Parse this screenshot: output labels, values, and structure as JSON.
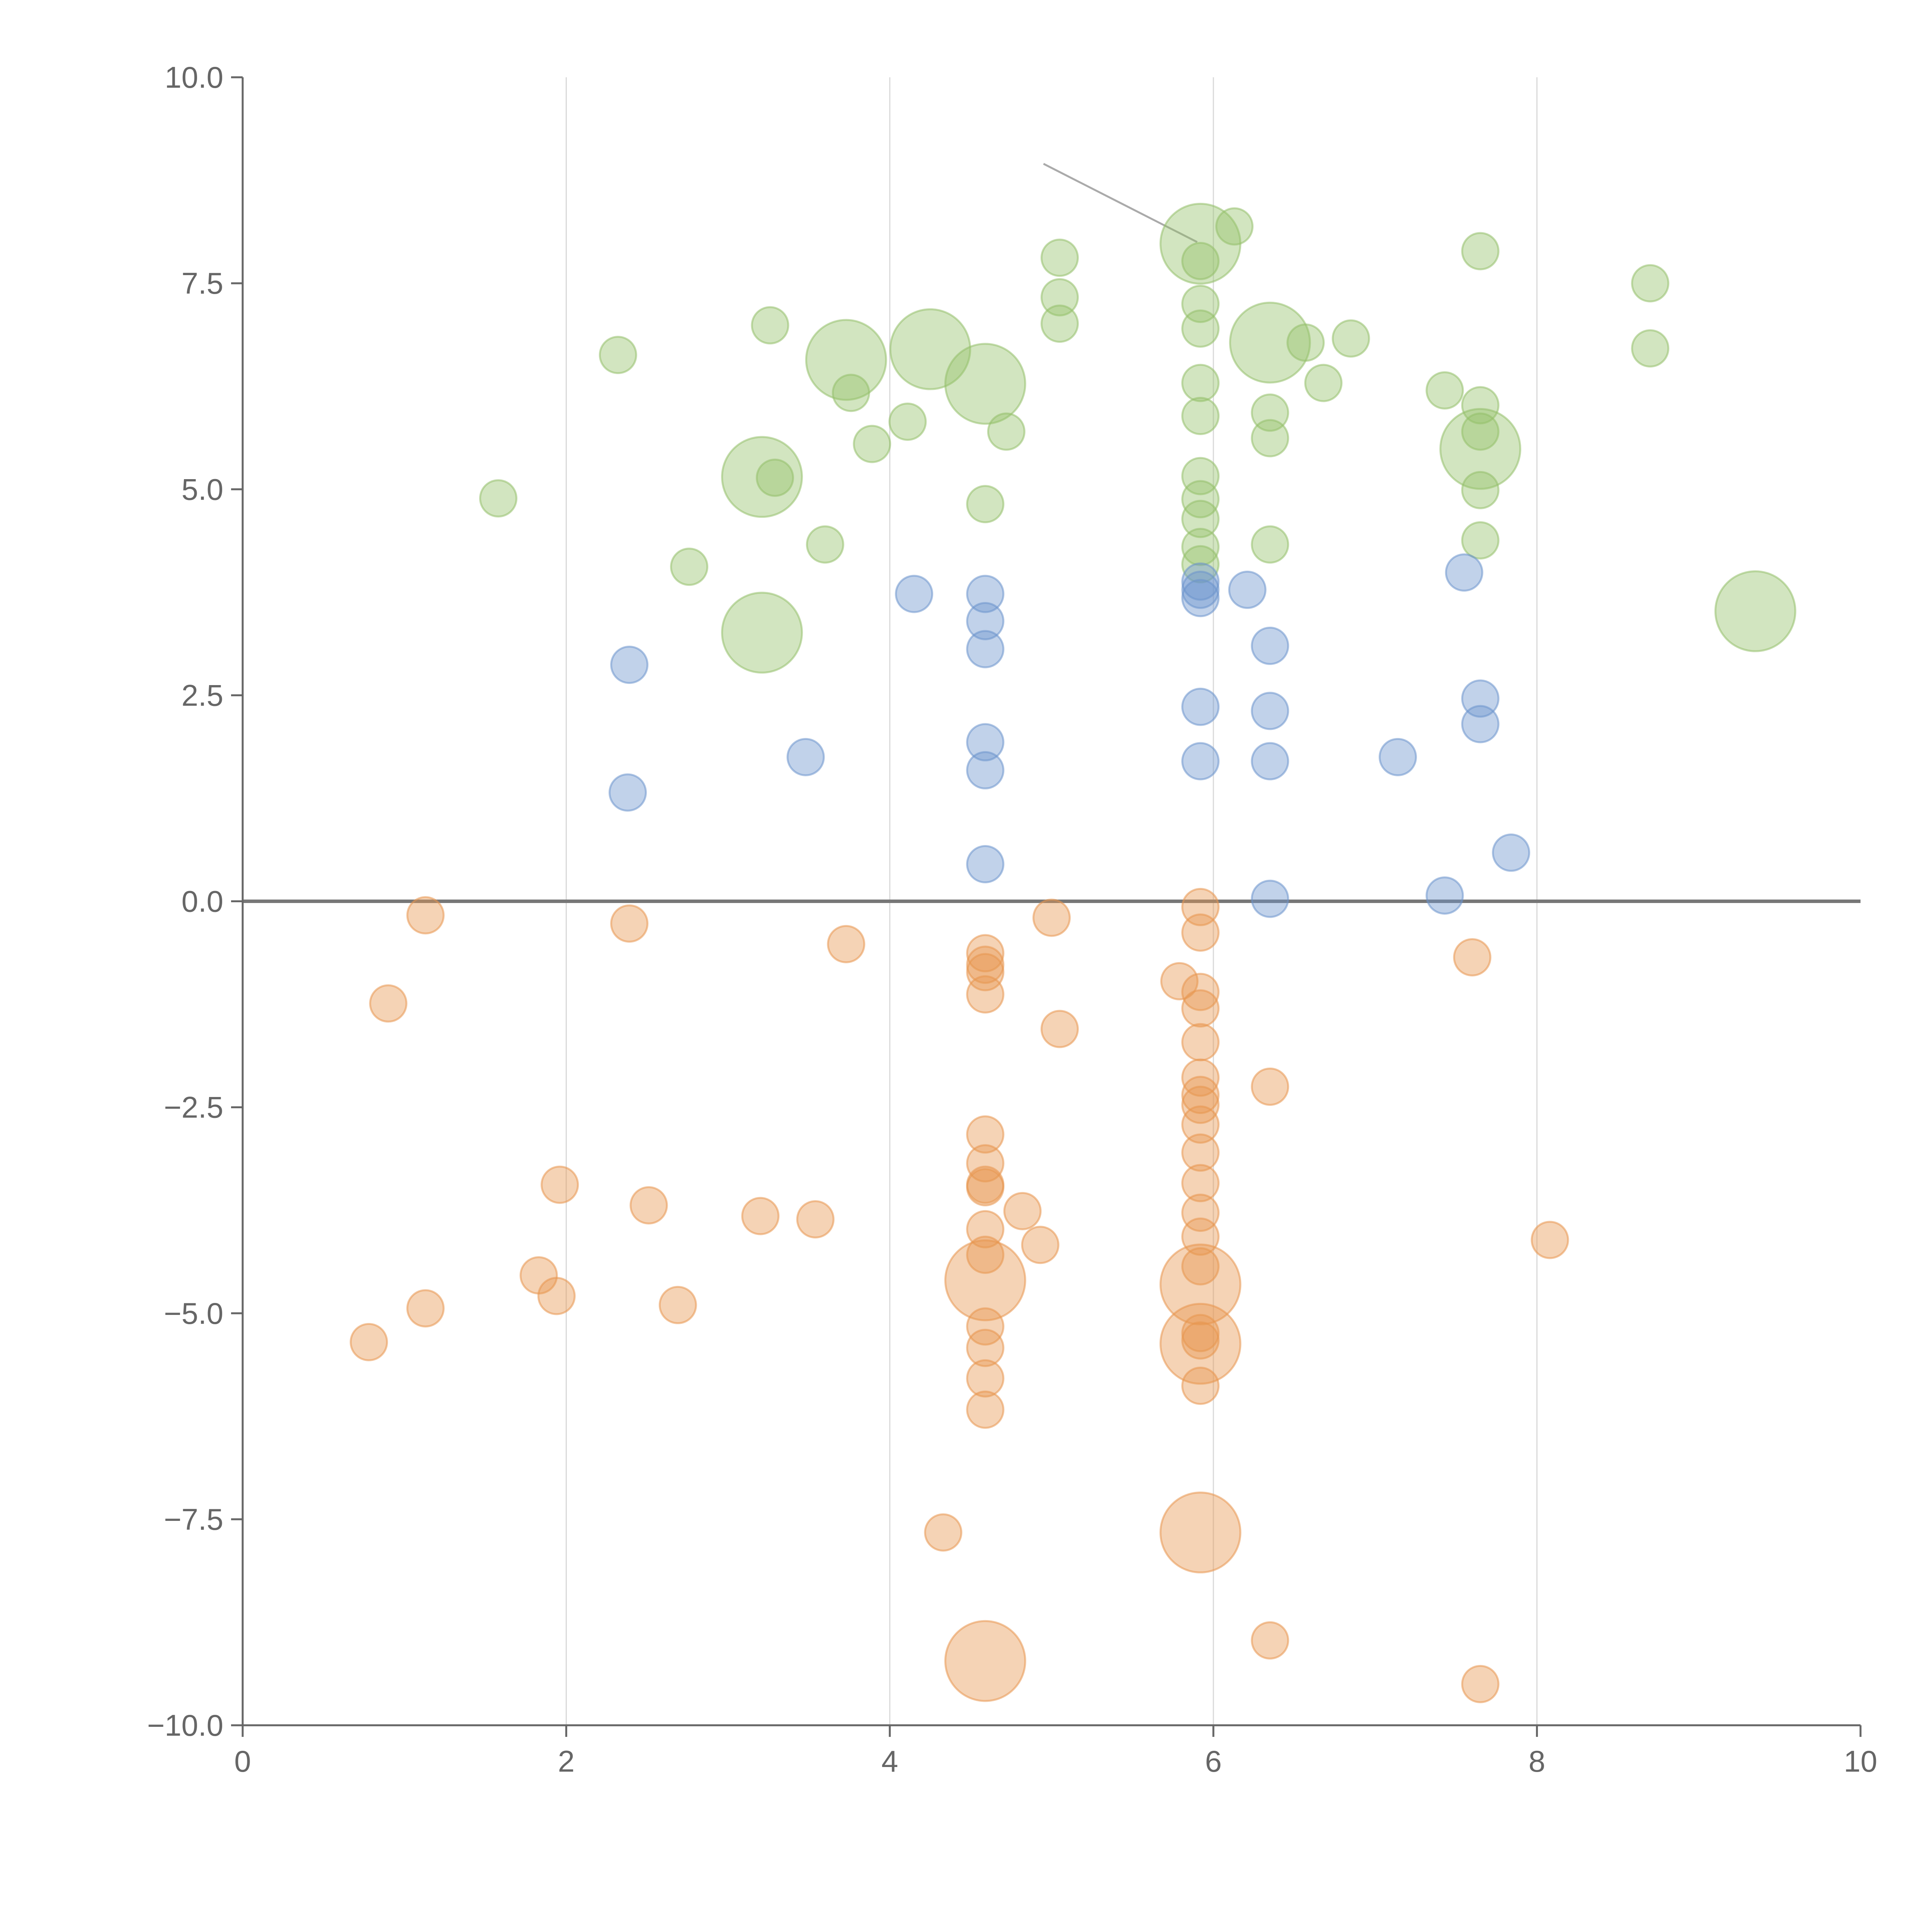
{
  "chart_data": {
    "type": "scatter",
    "title": "",
    "xlabel": "",
    "ylabel": "",
    "xlim": [
      0,
      10
    ],
    "ylim": [
      -10,
      10
    ],
    "x_ticks": [
      0,
      2,
      4,
      6,
      8,
      10
    ],
    "x_tick_labels": [
      "0",
      "2",
      "4",
      "6",
      "8",
      "10"
    ],
    "y_ticks": [
      10,
      7.5,
      5,
      2.5,
      0,
      -2.5,
      -5,
      -7.5,
      -10
    ],
    "y_tick_labels": [
      "10.0",
      "7.5",
      "5.0",
      "2.5",
      "0.0",
      "−2.5",
      "−5.0",
      "−7.5",
      "−10.0"
    ],
    "grid": "vertical",
    "colors": {
      "green": "#93c06a",
      "blue": "#6b93cc",
      "orange": "#e8954e"
    },
    "annotation_line": {
      "from": [
        4.95,
        8.95
      ],
      "to": [
        5.9,
        8.0
      ]
    },
    "series": [
      {
        "name": "green",
        "color": "#93c06a",
        "points": [
          [
            1.58,
            4.89,
            1
          ],
          [
            2.32,
            6.63,
            1
          ],
          [
            2.76,
            4.06,
            1
          ],
          [
            3.21,
            5.15,
            2.2
          ],
          [
            3.26,
            6.99,
            1
          ],
          [
            3.29,
            5.14,
            1
          ],
          [
            3.21,
            3.26,
            2.2
          ],
          [
            3.6,
            4.33,
            1
          ],
          [
            3.73,
            6.57,
            2.2
          ],
          [
            3.76,
            6.17,
            1
          ],
          [
            3.89,
            5.55,
            1
          ],
          [
            4.11,
            5.82,
            1
          ],
          [
            4.25,
            6.7,
            2.2
          ],
          [
            4.59,
            6.28,
            2.2
          ],
          [
            4.59,
            4.82,
            1
          ],
          [
            4.72,
            5.7,
            1
          ],
          [
            5.05,
            7.81,
            1
          ],
          [
            5.05,
            7.33,
            1
          ],
          [
            5.05,
            7.01,
            1
          ],
          [
            5.92,
            7.98,
            2.2
          ],
          [
            5.92,
            7.77,
            1
          ],
          [
            5.92,
            7.25,
            1
          ],
          [
            5.92,
            6.95,
            1
          ],
          [
            5.92,
            6.29,
            1
          ],
          [
            5.92,
            5.89,
            1
          ],
          [
            5.92,
            5.16,
            1
          ],
          [
            5.92,
            4.88,
            1
          ],
          [
            5.92,
            4.64,
            1
          ],
          [
            5.92,
            4.3,
            1
          ],
          [
            5.92,
            4.09,
            1
          ],
          [
            6.13,
            8.19,
            1
          ],
          [
            6.35,
            6.78,
            2.2
          ],
          [
            6.35,
            5.93,
            1
          ],
          [
            6.35,
            5.62,
            1
          ],
          [
            6.35,
            4.33,
            1
          ],
          [
            6.57,
            6.78,
            1
          ],
          [
            6.68,
            6.29,
            1
          ],
          [
            6.85,
            6.83,
            1
          ],
          [
            7.43,
            6.2,
            1
          ],
          [
            7.65,
            7.89,
            1
          ],
          [
            7.65,
            6.02,
            1
          ],
          [
            7.65,
            5.7,
            1
          ],
          [
            7.65,
            5.49,
            2.2
          ],
          [
            7.65,
            4.99,
            1
          ],
          [
            7.65,
            4.38,
            1
          ],
          [
            8.7,
            7.5,
            1
          ],
          [
            8.7,
            6.71,
            1
          ],
          [
            9.35,
            3.52,
            2.2
          ]
        ]
      },
      {
        "name": "blue",
        "color": "#6b93cc",
        "points": [
          [
            2.39,
            2.87,
            1
          ],
          [
            2.38,
            1.32,
            1
          ],
          [
            3.48,
            1.75,
            1
          ],
          [
            4.15,
            3.73,
            1
          ],
          [
            4.59,
            3.73,
            1
          ],
          [
            4.59,
            3.4,
            1
          ],
          [
            4.59,
            3.06,
            1
          ],
          [
            4.59,
            1.93,
            1
          ],
          [
            4.59,
            1.59,
            1
          ],
          [
            4.59,
            0.45,
            1
          ],
          [
            5.92,
            3.88,
            1
          ],
          [
            5.92,
            3.78,
            1
          ],
          [
            5.92,
            3.68,
            1
          ],
          [
            5.92,
            2.36,
            1
          ],
          [
            5.92,
            1.7,
            1
          ],
          [
            6.21,
            3.78,
            1
          ],
          [
            6.35,
            3.1,
            1
          ],
          [
            6.35,
            2.31,
            1
          ],
          [
            6.35,
            1.7,
            1
          ],
          [
            6.35,
            0.03,
            1
          ],
          [
            7.14,
            1.75,
            1
          ],
          [
            7.43,
            0.07,
            1
          ],
          [
            7.55,
            3.99,
            1
          ],
          [
            7.65,
            2.46,
            1
          ],
          [
            7.65,
            2.15,
            1
          ],
          [
            7.84,
            0.59,
            1
          ]
        ]
      },
      {
        "name": "orange",
        "color": "#e8954e",
        "points": [
          [
            0.78,
            -5.35,
            1
          ],
          [
            0.9,
            -1.24,
            1
          ],
          [
            1.13,
            -0.17,
            1
          ],
          [
            1.13,
            -4.94,
            1
          ],
          [
            1.83,
            -4.54,
            1
          ],
          [
            1.94,
            -4.79,
            1
          ],
          [
            1.96,
            -3.44,
            1
          ],
          [
            2.39,
            -0.27,
            1
          ],
          [
            2.51,
            -3.69,
            1
          ],
          [
            2.69,
            -4.9,
            1
          ],
          [
            3.2,
            -3.82,
            1
          ],
          [
            3.54,
            -3.86,
            1
          ],
          [
            3.73,
            -0.52,
            1
          ],
          [
            4.33,
            -7.66,
            1
          ],
          [
            4.59,
            -0.63,
            1
          ],
          [
            4.59,
            -0.77,
            1
          ],
          [
            4.59,
            -0.86,
            1
          ],
          [
            4.59,
            -1.13,
            1
          ],
          [
            4.59,
            -2.83,
            1
          ],
          [
            4.59,
            -3.18,
            1
          ],
          [
            4.59,
            -3.44,
            1
          ],
          [
            4.59,
            -3.47,
            1
          ],
          [
            4.59,
            -3.98,
            1
          ],
          [
            4.59,
            -4.29,
            1
          ],
          [
            4.59,
            -4.6,
            2.2
          ],
          [
            4.59,
            -5.16,
            1
          ],
          [
            4.59,
            -5.42,
            1
          ],
          [
            4.59,
            -5.79,
            1
          ],
          [
            4.59,
            -6.17,
            1
          ],
          [
            4.59,
            -9.22,
            2.2
          ],
          [
            4.82,
            -3.76,
            1
          ],
          [
            4.93,
            -4.17,
            1
          ],
          [
            5.0,
            -0.2,
            1
          ],
          [
            5.05,
            -1.55,
            1
          ],
          [
            5.79,
            -0.97,
            1
          ],
          [
            5.92,
            -0.07,
            1
          ],
          [
            5.92,
            -0.38,
            1
          ],
          [
            5.92,
            -1.1,
            1
          ],
          [
            5.92,
            -1.3,
            1
          ],
          [
            5.92,
            -1.71,
            1
          ],
          [
            5.92,
            -2.14,
            1
          ],
          [
            5.92,
            -2.35,
            1
          ],
          [
            5.92,
            -2.47,
            1
          ],
          [
            5.92,
            -2.71,
            1
          ],
          [
            5.92,
            -3.05,
            1
          ],
          [
            5.92,
            -3.42,
            1
          ],
          [
            5.92,
            -3.78,
            1
          ],
          [
            5.92,
            -4.07,
            1
          ],
          [
            5.92,
            -4.43,
            1
          ],
          [
            5.92,
            -4.65,
            2.2
          ],
          [
            5.92,
            -5.24,
            1
          ],
          [
            5.92,
            -5.33,
            1
          ],
          [
            5.92,
            -5.37,
            2.2
          ],
          [
            5.92,
            -5.88,
            1
          ],
          [
            5.92,
            -7.66,
            2.2
          ],
          [
            6.35,
            -2.25,
            1
          ],
          [
            6.35,
            -8.97,
            1
          ],
          [
            7.6,
            -0.68,
            1
          ],
          [
            7.65,
            -9.5,
            1
          ],
          [
            8.08,
            -4.11,
            1
          ]
        ]
      }
    ]
  }
}
